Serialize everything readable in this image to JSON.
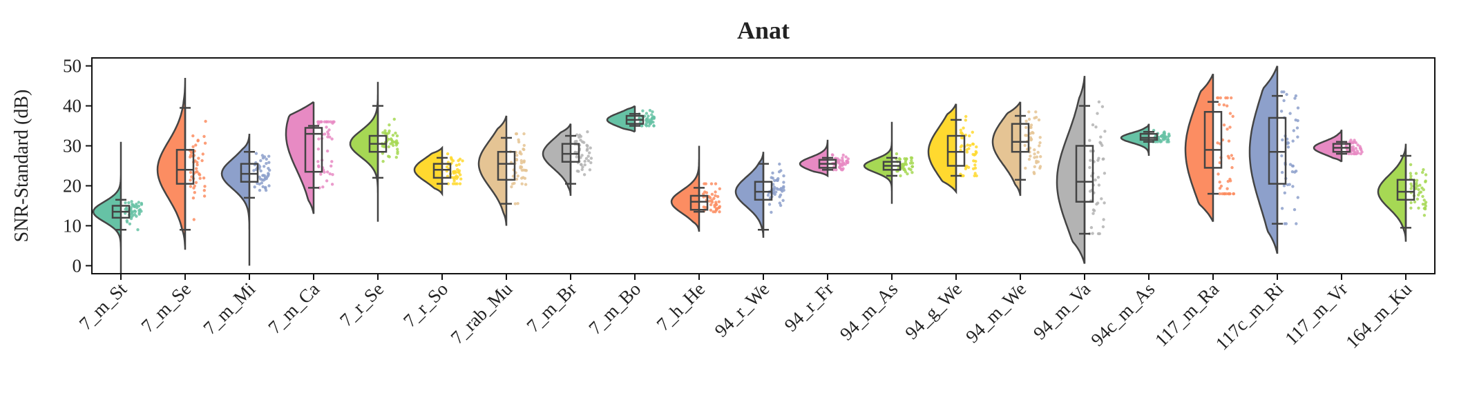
{
  "chart_data": {
    "type": "raincloud",
    "title": "Anat",
    "ylabel": "SNR-Standard (dB)",
    "xlabel": "",
    "ylim": [
      -2,
      52
    ],
    "yticks": [
      0,
      10,
      20,
      30,
      40,
      50
    ],
    "grid": false,
    "categories": [
      "7_m_St",
      "7_m_Se",
      "7_m_Mi",
      "7_m_Ca",
      "7_r_Se",
      "7_r_So",
      "7_rab_Mu",
      "7_m_Br",
      "7_m_Bo",
      "7_h_He",
      "94_r_We",
      "94_r_Fr",
      "94_m_As",
      "94_g_We",
      "94_m_We",
      "94_m_Va",
      "94c_m_As",
      "117_m_Ra",
      "117c_m_Ri",
      "117_m_Vr",
      "164_m_Ku"
    ],
    "colors": [
      "#66c2a5",
      "#fc8d62",
      "#8da0cb",
      "#e78ac3",
      "#a6d854",
      "#ffd92f",
      "#e5c494",
      "#b3b3b3",
      "#66c2a5",
      "#fc8d62",
      "#8da0cb",
      "#e78ac3",
      "#a6d854",
      "#ffd92f",
      "#e5c494",
      "#b3b3b3",
      "#66c2a5",
      "#fc8d62",
      "#8da0cb",
      "#e78ac3",
      "#a6d854"
    ],
    "series": [
      {
        "min": 9,
        "q1": 12,
        "median": 13.5,
        "q3": 15,
        "max": 16.5,
        "kde_low": -2,
        "kde_high": 31
      },
      {
        "min": 9,
        "q1": 20.5,
        "median": 24,
        "q3": 29,
        "max": 39.5,
        "kde_low": 4,
        "kde_high": 47
      },
      {
        "min": 17,
        "q1": 21,
        "median": 23,
        "q3": 25.5,
        "max": 28.5,
        "kde_low": 0,
        "kde_high": 33
      },
      {
        "min": 19.5,
        "q1": 23.5,
        "median": 33,
        "q3": 34.5,
        "max": 35,
        "kde_low": 13,
        "kde_high": 41
      },
      {
        "min": 22,
        "q1": 28.5,
        "median": 30.5,
        "q3": 32.5,
        "max": 40,
        "kde_low": 11,
        "kde_high": 46
      },
      {
        "min": 20.5,
        "q1": 22,
        "median": 24,
        "q3": 25.5,
        "max": 27,
        "kde_low": 18,
        "kde_high": 29.5
      },
      {
        "min": 15.5,
        "q1": 21.5,
        "median": 25.5,
        "q3": 28.5,
        "max": 32,
        "kde_low": 10,
        "kde_high": 37.5
      },
      {
        "min": 20.5,
        "q1": 26,
        "median": 28,
        "q3": 30.5,
        "max": 32.5,
        "kde_low": 17.5,
        "kde_high": 35.5
      },
      {
        "min": 35,
        "q1": 35.5,
        "median": 36.5,
        "q3": 37.5,
        "max": 38,
        "kde_low": 33.5,
        "kde_high": 40
      },
      {
        "min": 13.5,
        "q1": 14,
        "median": 16,
        "q3": 17.5,
        "max": 19.5,
        "kde_low": 8.5,
        "kde_high": 30
      },
      {
        "min": 9,
        "q1": 16.5,
        "median": 18.5,
        "q3": 21,
        "max": 25.5,
        "kde_low": 7,
        "kde_high": 28.5
      },
      {
        "min": 24,
        "q1": 24.5,
        "median": 25.5,
        "q3": 26.5,
        "max": 27,
        "kde_low": 22.5,
        "kde_high": 31.5
      },
      {
        "min": 22.5,
        "q1": 24,
        "median": 25,
        "q3": 26,
        "max": 27,
        "kde_low": 15.5,
        "kde_high": 36
      },
      {
        "min": 22.5,
        "q1": 25,
        "median": 28.5,
        "q3": 32.5,
        "max": 36.5,
        "kde_low": 18.5,
        "kde_high": 40.5
      },
      {
        "min": 21.5,
        "q1": 28.5,
        "median": 31,
        "q3": 35.5,
        "max": 37.5,
        "kde_low": 17.5,
        "kde_high": 41
      },
      {
        "min": 8,
        "q1": 16,
        "median": 21,
        "q3": 30,
        "max": 40,
        "kde_low": 0.5,
        "kde_high": 47.5
      },
      {
        "min": 31,
        "q1": 31.5,
        "median": 32,
        "q3": 33,
        "max": 33.5,
        "kde_low": 27.5,
        "kde_high": 35.5
      },
      {
        "min": 18,
        "q1": 24.5,
        "median": 29,
        "q3": 38.5,
        "max": 41,
        "kde_low": 11,
        "kde_high": 48
      },
      {
        "min": 10.5,
        "q1": 20.5,
        "median": 28.5,
        "q3": 37,
        "max": 42.5,
        "kde_low": 3,
        "kde_high": 50
      },
      {
        "min": 28,
        "q1": 28.5,
        "median": 29.5,
        "q3": 30.5,
        "max": 31,
        "kde_low": 26,
        "kde_high": 34
      },
      {
        "min": 9.5,
        "q1": 16.5,
        "median": 18.5,
        "q3": 21.5,
        "max": 27.5,
        "kde_low": 6,
        "kde_high": 30.5
      }
    ]
  }
}
